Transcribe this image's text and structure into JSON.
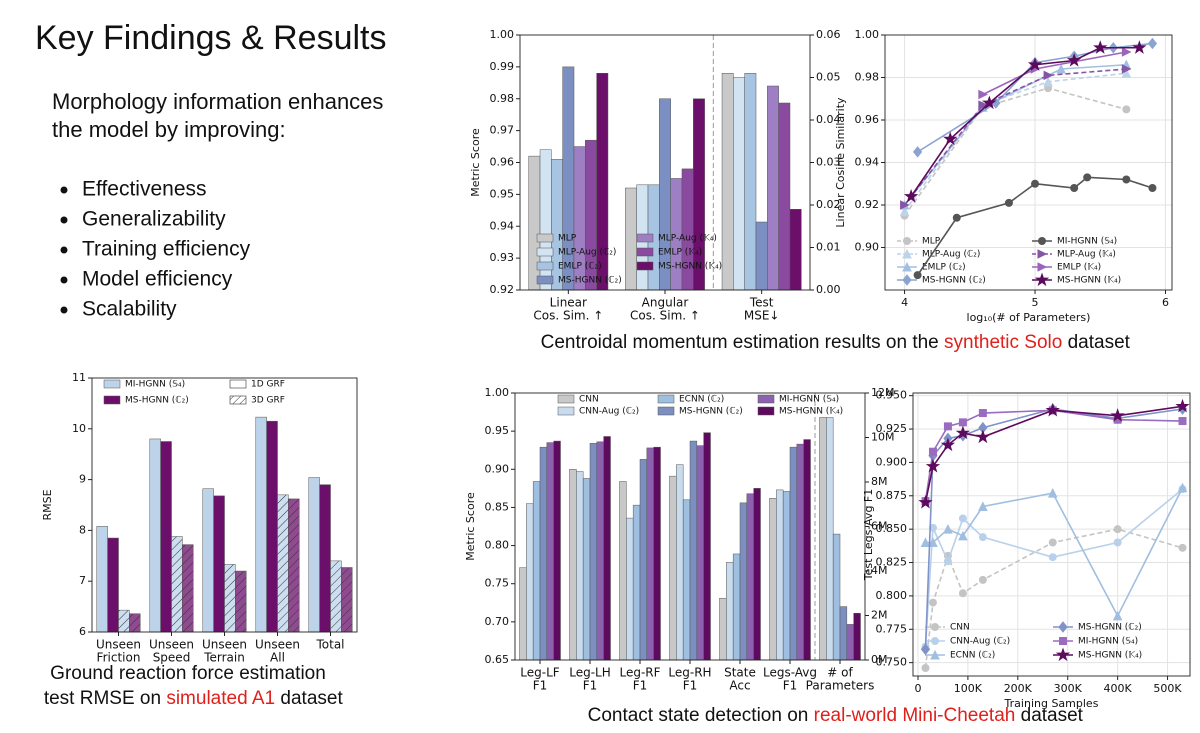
{
  "slide": {
    "title": "Key Findings & Results",
    "intro": [
      "Morphology information enhances",
      "the model by improving:"
    ],
    "bullets": [
      "Effectiveness",
      "Generalizability",
      "Training efficiency",
      "Model efficiency",
      "Scalability"
    ],
    "captions": [
      {
        "before": "Centroidal momentum estimation results on the ",
        "highlight": "synthetic Solo",
        "after": " dataset"
      },
      {
        "first": "Ground reaction force estimation",
        "before": "test RMSE on ",
        "highlight": "simulated A1",
        "after": " dataset"
      },
      {
        "before": "Contact state detection on ",
        "highlight": "real-world Mini-Cheetah",
        "after": " dataset"
      }
    ]
  },
  "chart_data": [
    {
      "type": "bar",
      "ylabel": "Metric Score",
      "categories": [
        [
          "Linear",
          "Cos. Sim. ↑"
        ],
        [
          "Angular",
          "Cos. Sim. ↑"
        ],
        [
          "Test",
          "MSE↓"
        ]
      ],
      "category_axis": [
        "y",
        "y",
        "y2"
      ],
      "ylim": [
        0.92,
        1.0
      ],
      "yticks": [
        0.92,
        0.93,
        0.94,
        0.95,
        0.96,
        0.97,
        0.98,
        0.99,
        {
          "value": 1.0,
          "label": "1.00"
        }
      ],
      "y2lim": [
        0,
        0.06
      ],
      "y2ticks": [
        {
          "value": 0,
          "label": "0.00"
        },
        0.01,
        0.02,
        0.03,
        0.04,
        0.05,
        0.06
      ],
      "grid": false,
      "separator": true,
      "series": [
        {
          "name": "MLP",
          "color": "#c9c9c9",
          "values": [
            0.962,
            0.952,
            0.051
          ]
        },
        {
          "name": "MLP-Aug (ℂ₂)",
          "color": "#d2e3f2",
          "values": [
            0.964,
            0.953,
            0.05
          ]
        },
        {
          "name": "EMLP (ℂ₂)",
          "color": "#a7c4e2",
          "values": [
            0.961,
            0.953,
            0.051
          ]
        },
        {
          "name": "MS-HGNN (ℂ₂)",
          "color": "#7c8fc2",
          "values": [
            0.99,
            0.98,
            0.016
          ]
        },
        {
          "name": "MLP-Aug (𝕂₄)",
          "color": "#9f7fc4",
          "values": [
            0.965,
            0.955,
            0.048
          ]
        },
        {
          "name": "EMLP (𝕂₄)",
          "color": "#8a4a9f",
          "values": [
            0.967,
            0.958,
            0.044
          ]
        },
        {
          "name": "MS-HGNN (𝕂₄)",
          "color": "#6b0f6b",
          "values": [
            0.988,
            0.98,
            0.019
          ]
        }
      ]
    },
    {
      "type": "line",
      "xlabel": "log₁₀(# of Parameters)",
      "ylabel": "Linear Cosine Similarity",
      "xlim": [
        3.85,
        6.05
      ],
      "xticks": [
        4,
        5,
        6
      ],
      "ylim": [
        0.88,
        1.0
      ],
      "yticks": [
        {
          "value": 0.9,
          "label": "0.90"
        },
        0.92,
        0.94,
        0.96,
        0.98,
        {
          "value": 1.0,
          "label": "1.00"
        }
      ],
      "grid": true,
      "series": [
        {
          "name": "MLP",
          "color": "#c4c4c4",
          "dash": true,
          "marker": "circle",
          "x": [
            4.0,
            4.6,
            5.1,
            5.7
          ],
          "values": [
            0.915,
            0.966,
            0.975,
            0.965
          ]
        },
        {
          "name": "MLP-Aug (ℂ₂)",
          "color": "#bcd3ea",
          "dash": true,
          "marker": "triangle",
          "x": [
            4.0,
            4.6,
            5.1,
            5.7
          ],
          "values": [
            0.917,
            0.967,
            0.978,
            0.982
          ]
        },
        {
          "name": "EMLP (ℂ₂)",
          "color": "#a3bfe0",
          "dash": false,
          "marker": "triangle",
          "x": [
            4.0,
            4.6,
            5.2,
            5.7
          ],
          "values": [
            0.92,
            0.966,
            0.984,
            0.986
          ]
        },
        {
          "name": "MS-HGNN (ℂ₂)",
          "color": "#8aa3d3",
          "dash": false,
          "marker": "diamond",
          "x": [
            4.1,
            4.7,
            5.0,
            5.3,
            5.6,
            5.9
          ],
          "values": [
            0.945,
            0.968,
            0.987,
            0.99,
            0.994,
            0.996
          ]
        },
        {
          "name": "MI-HGNN (𝕊₄)",
          "color": "#555555",
          "dash": false,
          "marker": "circle",
          "x": [
            4.1,
            4.4,
            4.8,
            5.0,
            5.3,
            5.4,
            5.7,
            5.9
          ],
          "values": [
            0.887,
            0.914,
            0.921,
            0.93,
            0.928,
            0.933,
            0.932,
            0.928
          ]
        },
        {
          "name": "MLP-Aug (𝕂₄)",
          "color": "#8456a8",
          "dash": true,
          "marker": "triangle-right",
          "x": [
            4.0,
            4.6,
            5.1,
            5.7
          ],
          "values": [
            0.92,
            0.967,
            0.981,
            0.984
          ]
        },
        {
          "name": "EMLP (𝕂₄)",
          "color": "#9a66bb",
          "dash": false,
          "marker": "triangle-right",
          "x": [
            4.6,
            5.0,
            5.7
          ],
          "values": [
            0.972,
            0.984,
            0.992
          ]
        },
        {
          "name": "MS-HGNN (𝕂₄)",
          "color": "#5c0a5c",
          "dash": false,
          "marker": "star",
          "x": [
            4.05,
            4.35,
            4.65,
            5.0,
            5.3,
            5.5,
            5.8
          ],
          "values": [
            0.924,
            0.951,
            0.968,
            0.986,
            0.988,
            0.994,
            0.994
          ]
        }
      ]
    },
    {
      "type": "bar",
      "ylabel": "RMSE",
      "categories": [
        [
          "Unseen",
          "Friction"
        ],
        [
          "Unseen",
          "Speed"
        ],
        [
          "Unseen",
          "Terrain"
        ],
        [
          "Unseen",
          "All"
        ],
        [
          "Total"
        ]
      ],
      "ylim": [
        6,
        11
      ],
      "yticks": [
        6,
        7,
        8,
        9,
        10,
        11
      ],
      "grid": false,
      "variants": [
        "1D GRF",
        "3D GRF"
      ],
      "variant_hatch": [
        false,
        true
      ],
      "series": [
        {
          "name": "MI-HGNN (𝕊₄)",
          "color": "#bcd3ea",
          "values": [
            [
              8.08,
              9.8,
              8.82,
              10.23,
              9.04
            ],
            [
              6.43,
              7.88,
              7.33,
              8.7,
              7.4
            ]
          ]
        },
        {
          "name": "MS-HGNN (ℂ₂)",
          "color": "#6b0f6b",
          "values": [
            [
              7.85,
              9.75,
              8.68,
              10.15,
              8.9
            ],
            [
              6.36,
              7.72,
              7.2,
              8.62,
              7.27
            ]
          ]
        }
      ]
    },
    {
      "type": "bar",
      "ylabel": "Metric Score",
      "categories": [
        [
          "Leg-LF",
          "F1"
        ],
        [
          "Leg-LH",
          "F1"
        ],
        [
          "Leg-RF",
          "F1"
        ],
        [
          "Leg-RH",
          "F1"
        ],
        [
          "State",
          "Acc"
        ],
        [
          "Legs-Avg",
          "F1"
        ],
        [
          "# of",
          "Parameters"
        ]
      ],
      "category_axis": [
        "y",
        "y",
        "y",
        "y",
        "y",
        "y",
        "y2"
      ],
      "ylim": [
        0.65,
        1.0
      ],
      "yticks": [
        0.65,
        {
          "value": 0.7,
          "label": "0.70"
        },
        0.75,
        {
          "value": 0.8,
          "label": "0.80"
        },
        0.85,
        {
          "value": 0.9,
          "label": "0.90"
        },
        0.95,
        {
          "value": 1.0,
          "label": "1.00"
        }
      ],
      "y2lim": [
        0,
        12000000
      ],
      "y2ticks": [
        {
          "value": 0,
          "label": "0M"
        },
        {
          "value": 2000000,
          "label": "2M"
        },
        {
          "value": 4000000,
          "label": "4M"
        },
        {
          "value": 6000000,
          "label": "6M"
        },
        {
          "value": 8000000,
          "label": "8M"
        },
        {
          "value": 10000000,
          "label": "10M"
        },
        {
          "value": 12000000,
          "label": "12M"
        }
      ],
      "grid": false,
      "separator": true,
      "series": [
        {
          "name": "CNN",
          "color": "#c8c8c8",
          "values": [
            0.771,
            0.9,
            0.884,
            0.891,
            0.731,
            0.862,
            10900000
          ]
        },
        {
          "name": "CNN-Aug (ℂ₂)",
          "color": "#c9dcee",
          "values": [
            0.855,
            0.897,
            0.836,
            0.906,
            0.778,
            0.873,
            10900000
          ]
        },
        {
          "name": "ECNN (ℂ₂)",
          "color": "#9fbfe0",
          "values": [
            0.884,
            0.888,
            0.853,
            0.86,
            0.789,
            0.871,
            5660000
          ]
        },
        {
          "name": "MS-HGNN (ℂ₂)",
          "color": "#7d8fc0",
          "values": [
            0.929,
            0.934,
            0.913,
            0.937,
            0.856,
            0.929,
            2400000
          ]
        },
        {
          "name": "MI-HGNN (𝕊₄)",
          "color": "#8c62b0",
          "values": [
            0.935,
            0.936,
            0.928,
            0.931,
            0.868,
            0.933,
            1600000
          ]
        },
        {
          "name": "MS-HGNN (𝕂₄)",
          "color": "#5e0a5e",
          "values": [
            0.937,
            0.943,
            0.929,
            0.948,
            0.875,
            0.939,
            2100000
          ]
        }
      ]
    },
    {
      "type": "line",
      "xlabel": "Training Samples",
      "ylabel": "Test Legs-Avg F1",
      "xlim": [
        -10000,
        545000
      ],
      "xticks": [
        0,
        {
          "value": 100000,
          "label": "100K"
        },
        {
          "value": 200000,
          "label": "200K"
        },
        {
          "value": 300000,
          "label": "300K"
        },
        {
          "value": 400000,
          "label": "400K"
        },
        {
          "value": 500000,
          "label": "500K"
        }
      ],
      "ylim": [
        0.74,
        0.952
      ],
      "yticks": [
        {
          "value": 0.75,
          "label": "0.750"
        },
        {
          "value": 0.775,
          "label": "0.775"
        },
        {
          "value": 0.8,
          "label": "0.800"
        },
        {
          "value": 0.825,
          "label": "0.825"
        },
        {
          "value": 0.85,
          "label": "0.850"
        },
        {
          "value": 0.875,
          "label": "0.875"
        },
        {
          "value": 0.9,
          "label": "0.900"
        },
        {
          "value": 0.925,
          "label": "0.925"
        },
        {
          "value": 0.95,
          "label": "0.950"
        }
      ],
      "grid": true,
      "x": [
        15000,
        30000,
        60000,
        90000,
        130000,
        270000,
        400000,
        530000
      ],
      "series": [
        {
          "name": "CNN",
          "color": "#c4c4c4",
          "dash": true,
          "marker": "circle",
          "values": [
            0.746,
            0.795,
            0.83,
            0.802,
            0.812,
            0.84,
            0.85,
            0.836
          ]
        },
        {
          "name": "CNN-Aug (ℂ₂)",
          "color": "#b8d0ea",
          "dash": false,
          "marker": "circle",
          "values": [
            0.762,
            0.851,
            0.826,
            0.858,
            0.844,
            0.829,
            0.84,
            0.88
          ]
        },
        {
          "name": "ECNN (ℂ₂)",
          "color": "#a0bee0",
          "dash": false,
          "marker": "triangle",
          "values": [
            0.84,
            0.84,
            0.85,
            0.845,
            0.867,
            0.877,
            0.785,
            0.881
          ]
        },
        {
          "name": "MS-HGNN (ℂ₂)",
          "color": "#7f93c8",
          "dash": false,
          "marker": "diamond",
          "values": [
            0.76,
            0.905,
            0.918,
            0.92,
            0.926,
            0.94,
            0.933,
            0.94
          ]
        },
        {
          "name": "MI-HGNN (𝕊₄)",
          "color": "#9a6cc0",
          "dash": false,
          "marker": "square",
          "values": [
            0.871,
            0.908,
            0.927,
            0.93,
            0.937,
            0.939,
            0.932,
            0.931
          ]
        },
        {
          "name": "MS-HGNN (𝕂₄)",
          "color": "#5e0a5e",
          "dash": false,
          "marker": "star",
          "values": [
            0.87,
            0.897,
            0.913,
            0.922,
            0.919,
            0.939,
            0.935,
            0.942
          ]
        }
      ]
    }
  ]
}
